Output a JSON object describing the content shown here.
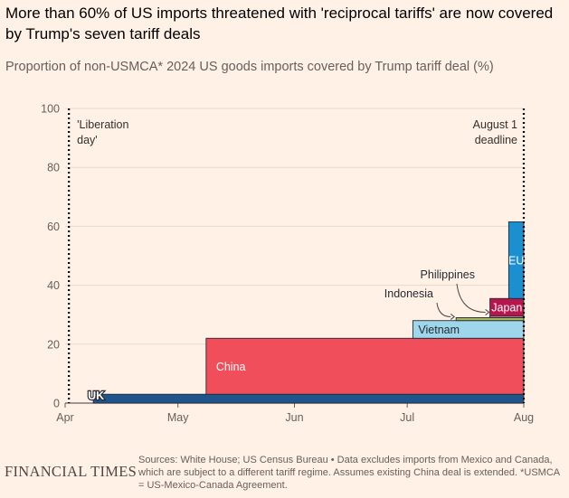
{
  "header": {
    "title": "More than 60% of US imports threatened with 'reciprocal tariffs' are now covered by Trump's seven tariff deals",
    "subtitle": "Proportion of non-USMCA* 2024 US goods imports covered by Trump tariff deal (%)"
  },
  "footer": {
    "logo_text": "FINANCIAL TIMES",
    "source": "Sources: White House; US Census Bureau • Data excludes imports from Mexico and Canada, which are subject to a different tariff regime. Assumes existing China deal is extended. *USMCA = US-Mexico-Canada Agreement."
  },
  "colors": {
    "background": "#fff1e5",
    "UK": "#1e558c",
    "China": "#f04e5a",
    "Vietnam": "#9ed7eb",
    "Indonesia": "#a6b85c",
    "Philippines": "#f7c1c4",
    "Japan": "#b5174c",
    "EU": "#1c8fd0"
  },
  "chart_data": {
    "type": "area",
    "title": "Proportion of non-USMCA* 2024 US goods imports covered by Trump tariff deal (%)",
    "xlabel": "",
    "ylabel": "",
    "ylim": [
      0,
      100
    ],
    "yticks": [
      0,
      20,
      40,
      60,
      80,
      100
    ],
    "x_ticks": [
      {
        "label": "Apr",
        "day": 0
      },
      {
        "label": "May",
        "day": 30
      },
      {
        "label": "Jun",
        "day": 61
      },
      {
        "label": "Jul",
        "day": 91
      },
      {
        "label": "Aug",
        "day": 122
      }
    ],
    "x_unit": "days since 1 April 2025",
    "xlim": [
      0,
      122
    ],
    "stack_order": [
      "UK",
      "China",
      "Vietnam",
      "Indonesia",
      "Philippines",
      "Japan",
      "EU"
    ],
    "series": [
      {
        "name": "UK",
        "start_day": 7.5,
        "end_day": 122,
        "value": 3
      },
      {
        "name": "China",
        "start_day": 37.5,
        "end_day": 122,
        "value": 19
      },
      {
        "name": "Vietnam",
        "start_day": 92.5,
        "end_day": 122,
        "value": 6
      },
      {
        "name": "Indonesia",
        "start_day": 104,
        "end_day": 122,
        "value": 1
      },
      {
        "name": "Philippines",
        "start_day": 113,
        "end_day": 122,
        "value": 0.5
      },
      {
        "name": "Japan",
        "start_day": 113,
        "end_day": 122,
        "value": 6
      },
      {
        "name": "EU",
        "start_day": 118,
        "end_day": 122,
        "value": 26
      }
    ],
    "markers": [
      {
        "day": 1,
        "label": "'Liberation day'",
        "lines": [
          "'Liberation",
          "day'"
        ],
        "align": "left"
      },
      {
        "day": 122,
        "label": "August 1 deadline",
        "lines": [
          "August 1",
          "deadline"
        ],
        "align": "right"
      }
    ],
    "annotations": [
      {
        "series": "UK",
        "text": "UK",
        "style": "outline"
      },
      {
        "series": "China",
        "text": "China",
        "style": "white"
      },
      {
        "series": "Vietnam",
        "text": "Vietnam",
        "style": "dark"
      },
      {
        "series": "Japan",
        "text": "Japan",
        "style": "white"
      },
      {
        "series": "EU",
        "text": "EU",
        "style": "white"
      },
      {
        "series": "Indonesia",
        "text": "Indonesia",
        "style": "callout"
      },
      {
        "series": "Philippines",
        "text": "Philippines",
        "style": "callout"
      }
    ]
  }
}
